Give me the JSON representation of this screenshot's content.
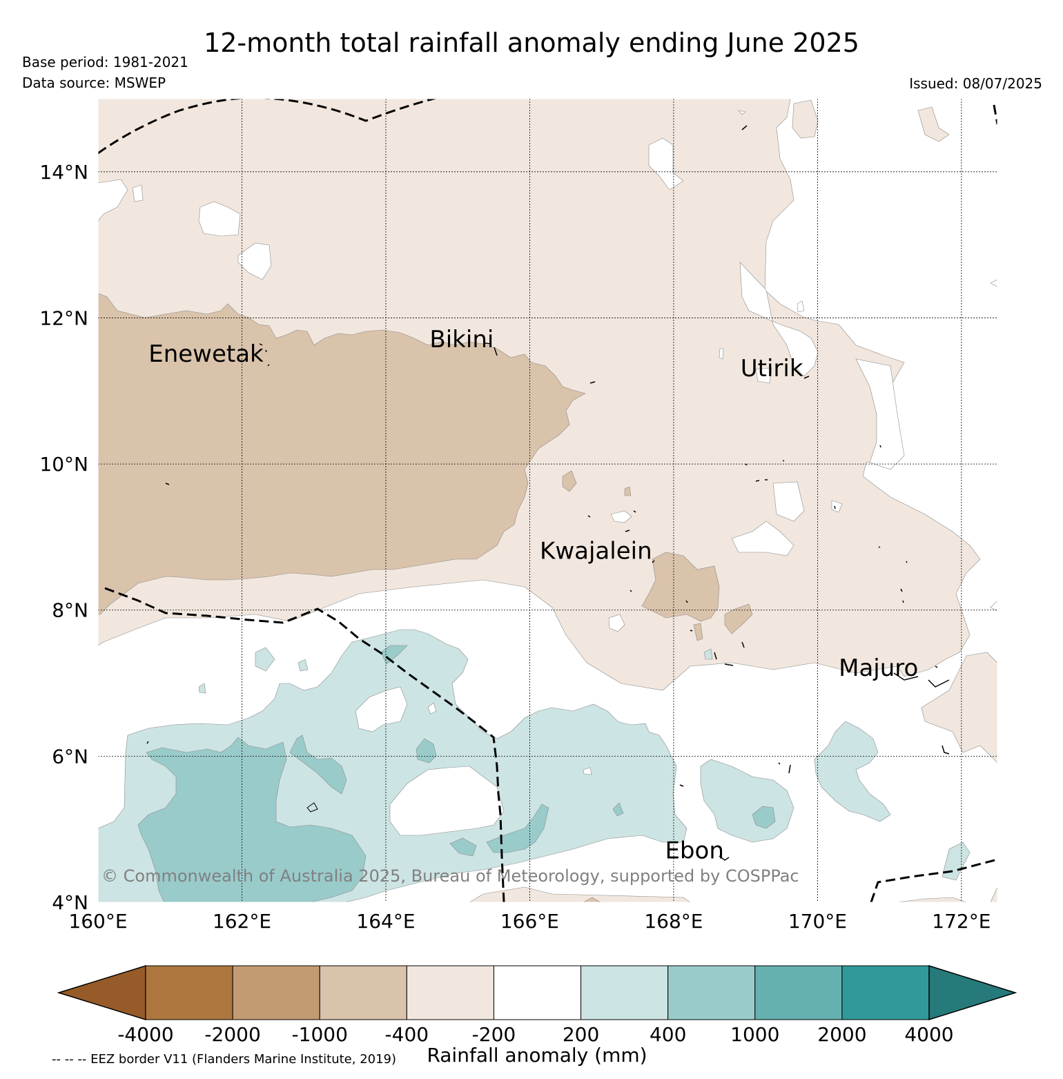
{
  "title": "12-month total rainfall anomaly ending June 2025",
  "base_period": "Base period: 1981-2021",
  "data_source": "Data source: MSWEP",
  "issued": "Issued: 08/07/2025",
  "copyright": "© Commonwealth of Australia 2025, Bureau of Meteorology, supported by COSPPac",
  "eez_note": "-- -- -- EEZ border V11 (Flanders Marine Institute, 2019)",
  "map": {
    "lon_range": [
      160,
      172.5
    ],
    "lat_range": [
      4,
      15
    ],
    "x_ticks": [
      "160°E",
      "162°E",
      "164°E",
      "166°E",
      "168°E",
      "170°E",
      "172°E"
    ],
    "y_ticks": [
      "4°N",
      "6°N",
      "8°N",
      "10°N",
      "12°N",
      "14°N"
    ],
    "places": [
      {
        "name": "Enewetak",
        "lon": 162.3,
        "lat": 11.4
      },
      {
        "name": "Bikini",
        "lon": 165.5,
        "lat": 11.6
      },
      {
        "name": "Utirik",
        "lon": 169.8,
        "lat": 11.2
      },
      {
        "name": "Kwajalein",
        "lon": 167.7,
        "lat": 8.7
      },
      {
        "name": "Majuro",
        "lon": 171.4,
        "lat": 7.1
      },
      {
        "name": "Ebon",
        "lon": 168.7,
        "lat": 4.6
      }
    ],
    "grid": true
  },
  "colorbar": {
    "label": "Rainfall anomaly (mm)",
    "ticks": [
      "-4000",
      "-2000",
      "-1000",
      "-400",
      "-200",
      "200",
      "400",
      "1000",
      "2000",
      "4000"
    ],
    "colors": [
      "#965b28",
      "#ad773f",
      "#c39b72",
      "#dac3ab",
      "#f1e7de",
      "#ffffff",
      "#cce4e3",
      "#9acbcb",
      "#64b1b0",
      "#31999a",
      "#267a7a"
    ]
  }
}
